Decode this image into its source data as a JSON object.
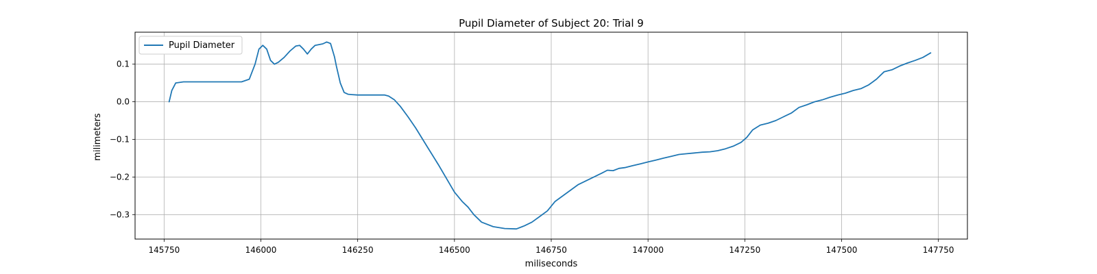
{
  "chart_data": {
    "type": "line",
    "title": "Pupil Diameter of Subject 20: Trial 9",
    "xlabel": "miliseconds",
    "ylabel": "milimeters",
    "xlim": [
      145675,
      147825
    ],
    "ylim": [
      -0.365,
      0.185
    ],
    "xticks": [
      145750,
      146000,
      146250,
      146500,
      146750,
      147000,
      147250,
      147500,
      147750
    ],
    "xtick_labels": [
      "145750",
      "146000",
      "146250",
      "146500",
      "146750",
      "147000",
      "147250",
      "147500",
      "147750"
    ],
    "yticks": [
      -0.3,
      -0.2,
      -0.1,
      0.0,
      0.1
    ],
    "ytick_labels": [
      "−0.3",
      "−0.2",
      "−0.1",
      "0.0",
      "0.1"
    ],
    "grid": true,
    "legend_position": "upper-left",
    "series": [
      {
        "name": "Pupil Diameter",
        "color": "#1f77b4",
        "x": [
          145763,
          145770,
          145780,
          145800,
          145850,
          145900,
          145950,
          145970,
          145985,
          145995,
          146005,
          146015,
          146025,
          146035,
          146045,
          146060,
          146075,
          146090,
          146100,
          146110,
          146120,
          146130,
          146140,
          146150,
          146160,
          146170,
          146180,
          146190,
          146195,
          146205,
          146215,
          146225,
          146235,
          146250,
          146280,
          146300,
          146320,
          146330,
          146345,
          146360,
          146380,
          146400,
          146430,
          146460,
          146480,
          146500,
          146520,
          146535,
          146550,
          146570,
          146600,
          146630,
          146660,
          146680,
          146700,
          146720,
          146740,
          146760,
          146780,
          146800,
          146820,
          146840,
          146860,
          146880,
          146895,
          146910,
          146925,
          146940,
          146960,
          146980,
          147000,
          147020,
          147040,
          147060,
          147080,
          147100,
          147120,
          147140,
          147160,
          147180,
          147200,
          147220,
          147240,
          147255,
          147270,
          147290,
          147310,
          147330,
          147350,
          147370,
          147390,
          147410,
          147430,
          147450,
          147470,
          147490,
          147510,
          147530,
          147550,
          147570,
          147590,
          147610,
          147630,
          147650,
          147670,
          147690,
          147710,
          147730
        ],
        "y": [
          0.0,
          0.03,
          0.05,
          0.053,
          0.053,
          0.053,
          0.053,
          0.06,
          0.1,
          0.14,
          0.15,
          0.14,
          0.11,
          0.1,
          0.105,
          0.118,
          0.135,
          0.148,
          0.15,
          0.14,
          0.127,
          0.14,
          0.15,
          0.152,
          0.154,
          0.159,
          0.155,
          0.12,
          0.095,
          0.05,
          0.025,
          0.02,
          0.019,
          0.018,
          0.018,
          0.018,
          0.018,
          0.015,
          0.005,
          -0.012,
          -0.04,
          -0.07,
          -0.12,
          -0.17,
          -0.205,
          -0.24,
          -0.265,
          -0.28,
          -0.3,
          -0.32,
          -0.332,
          -0.337,
          -0.338,
          -0.33,
          -0.32,
          -0.305,
          -0.29,
          -0.265,
          -0.25,
          -0.235,
          -0.22,
          -0.21,
          -0.2,
          -0.19,
          -0.182,
          -0.183,
          -0.177,
          -0.175,
          -0.17,
          -0.165,
          -0.16,
          -0.155,
          -0.15,
          -0.145,
          -0.14,
          -0.138,
          -0.136,
          -0.134,
          -0.133,
          -0.13,
          -0.125,
          -0.118,
          -0.108,
          -0.095,
          -0.075,
          -0.062,
          -0.057,
          -0.05,
          -0.04,
          -0.03,
          -0.015,
          -0.008,
          0.0,
          0.005,
          0.012,
          0.018,
          0.023,
          0.03,
          0.035,
          0.045,
          0.06,
          0.08,
          0.085,
          0.095,
          0.103,
          0.11,
          0.118,
          0.13
        ]
      }
    ]
  }
}
